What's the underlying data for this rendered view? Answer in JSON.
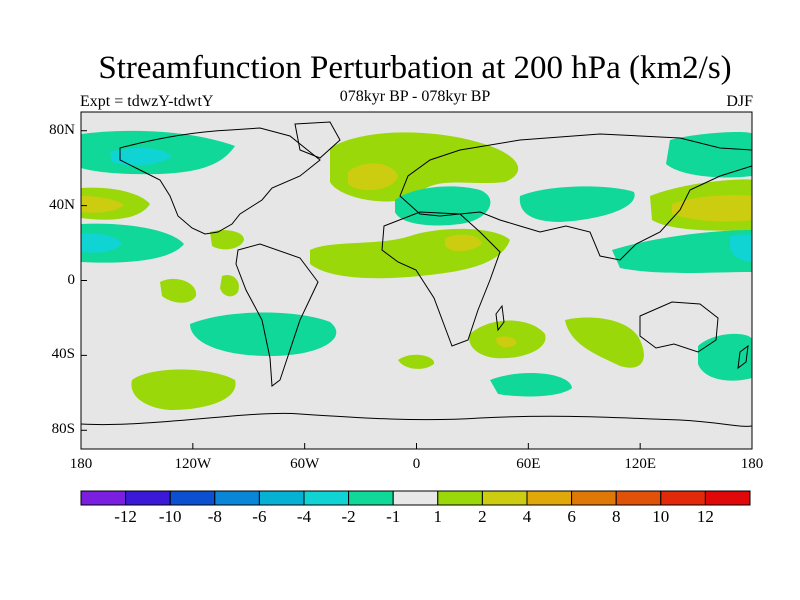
{
  "header": {
    "title": "Streamfunction Perturbation at 200 hPa (km2/s)",
    "subtitle": "078kyr BP - 078kyr BP",
    "left_label": "Expt = tdwzY-tdwtY",
    "right_label": "DJF"
  },
  "map": {
    "projection": "cylindrical-equidistant",
    "background_color": "#e6e6e6",
    "lon_range": [
      -180,
      180
    ],
    "lat_range": [
      -90,
      90
    ],
    "x_ticks": [
      {
        "label": "180",
        "lon": -180
      },
      {
        "label": "120W",
        "lon": -120
      },
      {
        "label": "60W",
        "lon": -60
      },
      {
        "label": "0",
        "lon": 0
      },
      {
        "label": "60E",
        "lon": 60
      },
      {
        "label": "120E",
        "lon": 120
      },
      {
        "label": "180",
        "lon": 180
      }
    ],
    "y_ticks": [
      {
        "label": "80N",
        "lat": 80
      },
      {
        "label": "40N",
        "lat": 40
      },
      {
        "label": "0",
        "lat": 0
      },
      {
        "label": "40S",
        "lat": -40
      },
      {
        "label": "80S",
        "lat": -80
      }
    ]
  },
  "colorbar": {
    "colors": [
      "#7a1fe0",
      "#3a1ad8",
      "#0c4fd0",
      "#0a86d8",
      "#06b2d4",
      "#10d4d4",
      "#10d898",
      "#e8e8e8",
      "#9ad80a",
      "#cccc10",
      "#e0a808",
      "#e07808",
      "#e05208",
      "#e02a0a",
      "#e00808"
    ],
    "labels": [
      "-12",
      "-10",
      "-8",
      "-6",
      "-4",
      "-2",
      "-1",
      "1",
      "2",
      "4",
      "6",
      "8",
      "10",
      "12"
    ]
  },
  "colors": {
    "anomaly_pos_1": "#9ad80a",
    "anomaly_pos_2": "#cccc10",
    "anomaly_neg_1": "#10d898",
    "anomaly_neg_2": "#10d4d4"
  }
}
